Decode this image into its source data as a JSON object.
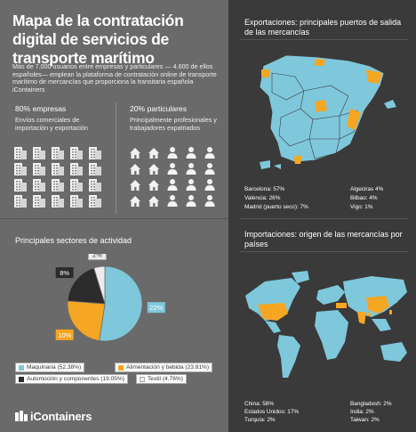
{
  "title": "Mapa de la contratación digital de servicios de transporte marítimo",
  "intro": "Más de 7.000 usuarios entre empresas y particulares — 4.600 de ellos españoles— emplean la plataforma de contratación online de transporte marítimo de mercancías que proporciona la transitaria española iContainers",
  "companies": {
    "pct": "80% empresas",
    "desc": "Envíos comerciales de importación y exportación"
  },
  "individuals": {
    "pct": "20% particulares",
    "desc": "Principalmente profesionales y trabajadores expatriados"
  },
  "sectors_title": "Principales sectores de actividad",
  "chart_data": {
    "type": "pie",
    "categories": [
      "Maquinaria",
      "Alimentación y bebida",
      "Automoción y componentes",
      "Textil"
    ],
    "values": [
      52.38,
      23.81,
      19.05,
      4.76
    ],
    "data_labels": [
      "22%",
      "10%",
      "8%",
      "2%"
    ],
    "legend": [
      "Maquinaria (52.38%)",
      "Alimentación y bebida (23.81%)",
      "Automoción y componentes (19.05%)",
      "Textil (4.76%)"
    ],
    "colors": [
      "#7fc8dc",
      "#f5a623",
      "#2b2b2b",
      "#ececec"
    ],
    "legend_placement": "bottom"
  },
  "logo": "iContainers",
  "exports": {
    "title": "Exportaciones: principales puertos de salida de las mercancías",
    "ports": [
      {
        "label": "Barcelona: 57%"
      },
      {
        "label": "Valencia: 26%"
      },
      {
        "label": "Madrid (puerto seco): 7%"
      },
      {
        "label": "Algeciras 4%"
      },
      {
        "label": "Bilbao: 4%"
      },
      {
        "label": "Vigo: 1%"
      }
    ]
  },
  "imports": {
    "title": "Importaciones: origen de las mercancías por países",
    "countries": [
      {
        "label": "China: 58%"
      },
      {
        "label": "Estados Unidos: 17%"
      },
      {
        "label": "Turquía: 2%"
      },
      {
        "label": "Bangladesh: 2%"
      },
      {
        "label": "India: 2%"
      },
      {
        "label": "Taiwan: 2%"
      }
    ]
  },
  "colors": {
    "accent_orange": "#f5a623",
    "map_blue": "#7fc8dc",
    "dark_panel": "#3a3a3a",
    "left_panel": "#6a6a6a"
  }
}
